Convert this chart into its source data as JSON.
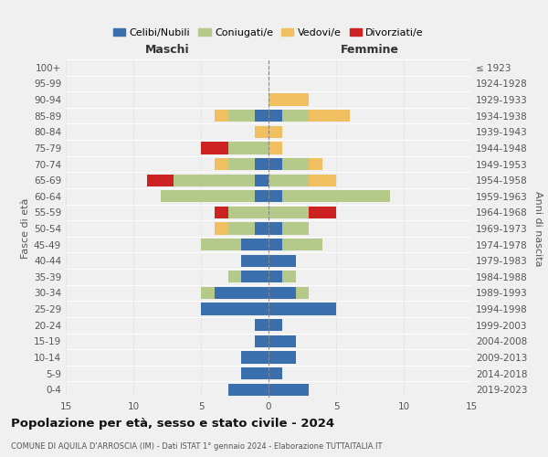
{
  "age_groups": [
    "0-4",
    "5-9",
    "10-14",
    "15-19",
    "20-24",
    "25-29",
    "30-34",
    "35-39",
    "40-44",
    "45-49",
    "50-54",
    "55-59",
    "60-64",
    "65-69",
    "70-74",
    "75-79",
    "80-84",
    "85-89",
    "90-94",
    "95-99",
    "100+"
  ],
  "birth_years": [
    "2019-2023",
    "2014-2018",
    "2009-2013",
    "2004-2008",
    "1999-2003",
    "1994-1998",
    "1989-1993",
    "1984-1988",
    "1979-1983",
    "1974-1978",
    "1969-1973",
    "1964-1968",
    "1959-1963",
    "1954-1958",
    "1949-1953",
    "1944-1948",
    "1939-1943",
    "1934-1938",
    "1929-1933",
    "1924-1928",
    "≤ 1923"
  ],
  "colors": {
    "celibi": "#3a6ead",
    "coniugati": "#b5c98a",
    "vedovi": "#f0c060",
    "divorziati": "#cc2222"
  },
  "maschi": {
    "celibi": [
      3,
      2,
      2,
      1,
      1,
      5,
      4,
      2,
      2,
      2,
      1,
      0,
      1,
      1,
      1,
      0,
      0,
      1,
      0,
      0,
      0
    ],
    "coniugati": [
      0,
      0,
      0,
      0,
      0,
      0,
      1,
      1,
      0,
      3,
      2,
      3,
      7,
      6,
      2,
      3,
      0,
      2,
      0,
      0,
      0
    ],
    "vedovi": [
      0,
      0,
      0,
      0,
      0,
      0,
      0,
      0,
      0,
      0,
      1,
      0,
      0,
      0,
      1,
      0,
      1,
      1,
      0,
      0,
      0
    ],
    "divorziati": [
      0,
      0,
      0,
      0,
      0,
      0,
      0,
      0,
      0,
      0,
      0,
      1,
      0,
      2,
      0,
      2,
      0,
      0,
      0,
      0,
      0
    ]
  },
  "femmine": {
    "celibi": [
      3,
      1,
      2,
      2,
      1,
      5,
      2,
      1,
      2,
      1,
      1,
      0,
      1,
      0,
      1,
      0,
      0,
      1,
      0,
      0,
      0
    ],
    "coniugati": [
      0,
      0,
      0,
      0,
      0,
      0,
      1,
      1,
      0,
      3,
      2,
      3,
      8,
      3,
      2,
      0,
      0,
      2,
      0,
      0,
      0
    ],
    "vedovi": [
      0,
      0,
      0,
      0,
      0,
      0,
      0,
      0,
      0,
      0,
      0,
      0,
      0,
      2,
      1,
      1,
      1,
      3,
      3,
      0,
      0
    ],
    "divorziati": [
      0,
      0,
      0,
      0,
      0,
      0,
      0,
      0,
      0,
      0,
      0,
      2,
      0,
      0,
      0,
      0,
      0,
      0,
      0,
      0,
      0
    ]
  },
  "xlim": 15,
  "title": "Popolazione per età, sesso e stato civile - 2024",
  "subtitle": "COMUNE DI AQUILA D'ARROSCIA (IM) - Dati ISTAT 1° gennaio 2024 - Elaborazione TUTTAITALIA.IT",
  "legend_labels": [
    "Celibi/Nubili",
    "Coniugati/e",
    "Vedovi/e",
    "Divorziati/e"
  ],
  "ylabel_left": "Fasce di età",
  "ylabel_right": "Anni di nascita",
  "xlabel_left": "Maschi",
  "xlabel_right": "Femmine",
  "bg_color": "#f0f0f0"
}
